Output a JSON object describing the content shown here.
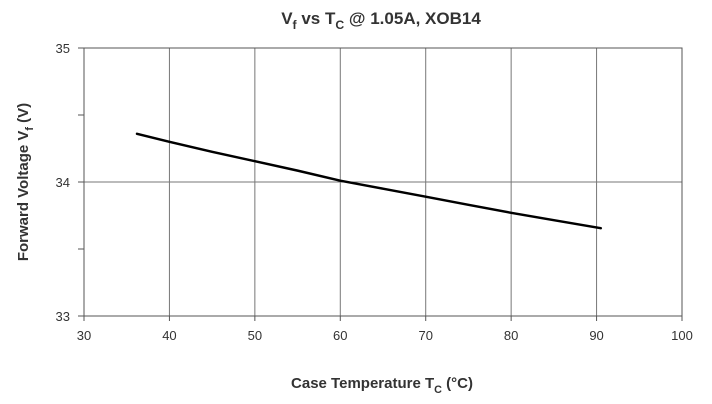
{
  "chart_data": {
    "type": "line",
    "title": {
      "pre": "V",
      "sub1": "f",
      "mid": " vs T",
      "sub2": "C",
      "post": " @ 1.05A, XOB14"
    },
    "xlabel": {
      "pre": "Case Temperature T",
      "sub": "C",
      "post": " (°C)"
    },
    "ylabel": {
      "pre": "Forward Voltage V",
      "sub": "f",
      "post": " (V)"
    },
    "xlim": [
      30,
      100
    ],
    "ylim": [
      33,
      35
    ],
    "xticks": [
      30,
      40,
      50,
      60,
      70,
      80,
      90,
      100
    ],
    "yticks_labeled": [
      33,
      34,
      35
    ],
    "yticks_minor": [
      33.5,
      34.5
    ],
    "grid": true,
    "series": [
      {
        "color": "#000000",
        "x": [
          36.2,
          40,
          45,
          50,
          55,
          60,
          65,
          70,
          75,
          80,
          85,
          90.5
        ],
        "y": [
          34.36,
          34.3,
          34.225,
          34.155,
          34.085,
          34.01,
          33.95,
          33.89,
          33.83,
          33.77,
          33.715,
          33.655
        ]
      }
    ]
  }
}
